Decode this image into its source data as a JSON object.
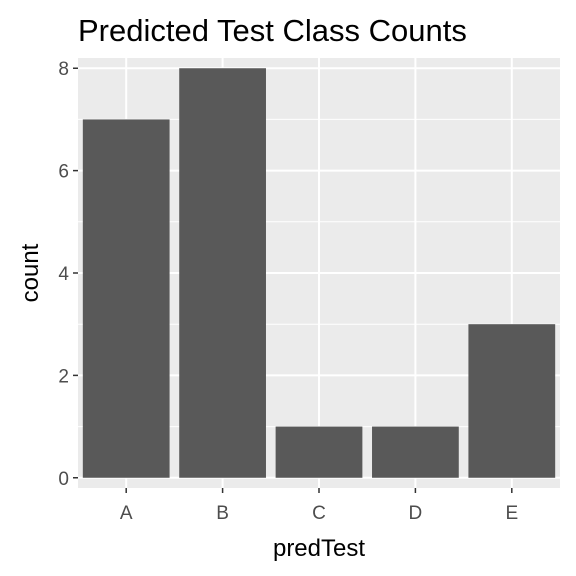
{
  "chart_data": {
    "type": "bar",
    "title": "Predicted Test Class Counts",
    "xlabel": "predTest",
    "ylabel": "count",
    "categories": [
      "A",
      "B",
      "C",
      "D",
      "E"
    ],
    "values": [
      7,
      8,
      1,
      1,
      3
    ],
    "ylim": [
      -0.2,
      8.2
    ],
    "yticks": [
      0,
      2,
      4,
      6,
      8
    ],
    "grid": true,
    "colors": {
      "bar": "#595959",
      "panel_background": "#ebebeb",
      "grid": "#ffffff",
      "tick_text": "#4d4d4d"
    }
  }
}
